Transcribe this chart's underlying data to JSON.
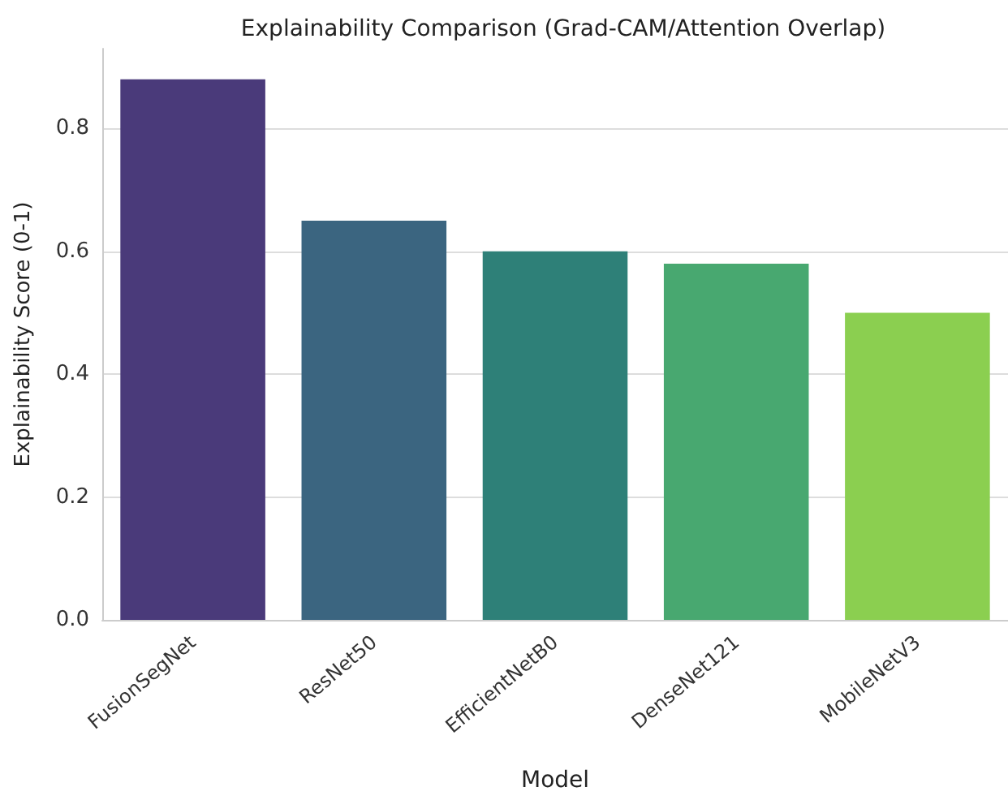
{
  "chart_data": {
    "type": "bar",
    "title": "Explainability Comparison (Grad-CAM/Attention Overlap)",
    "xlabel": "Model",
    "ylabel": "Explainability Score (0-1)",
    "categories": [
      "FusionSegNet",
      "ResNet50",
      "EfficientNetB0",
      "DenseNet121",
      "MobileNetV3"
    ],
    "values": [
      0.88,
      0.65,
      0.6,
      0.58,
      0.5
    ],
    "colors": [
      "#4a3a7a",
      "#3b6580",
      "#2e8078",
      "#48a870",
      "#8bcf50"
    ],
    "ylim": [
      0,
      0.93
    ],
    "yticks": [
      {
        "value": 0,
        "label": "0.0"
      },
      {
        "value": 0.2,
        "label": "0.2"
      },
      {
        "value": 0.4,
        "label": "0.4"
      },
      {
        "value": 0.6,
        "label": "0.6"
      },
      {
        "value": 0.8,
        "label": "0.8"
      }
    ],
    "grid": "y"
  }
}
